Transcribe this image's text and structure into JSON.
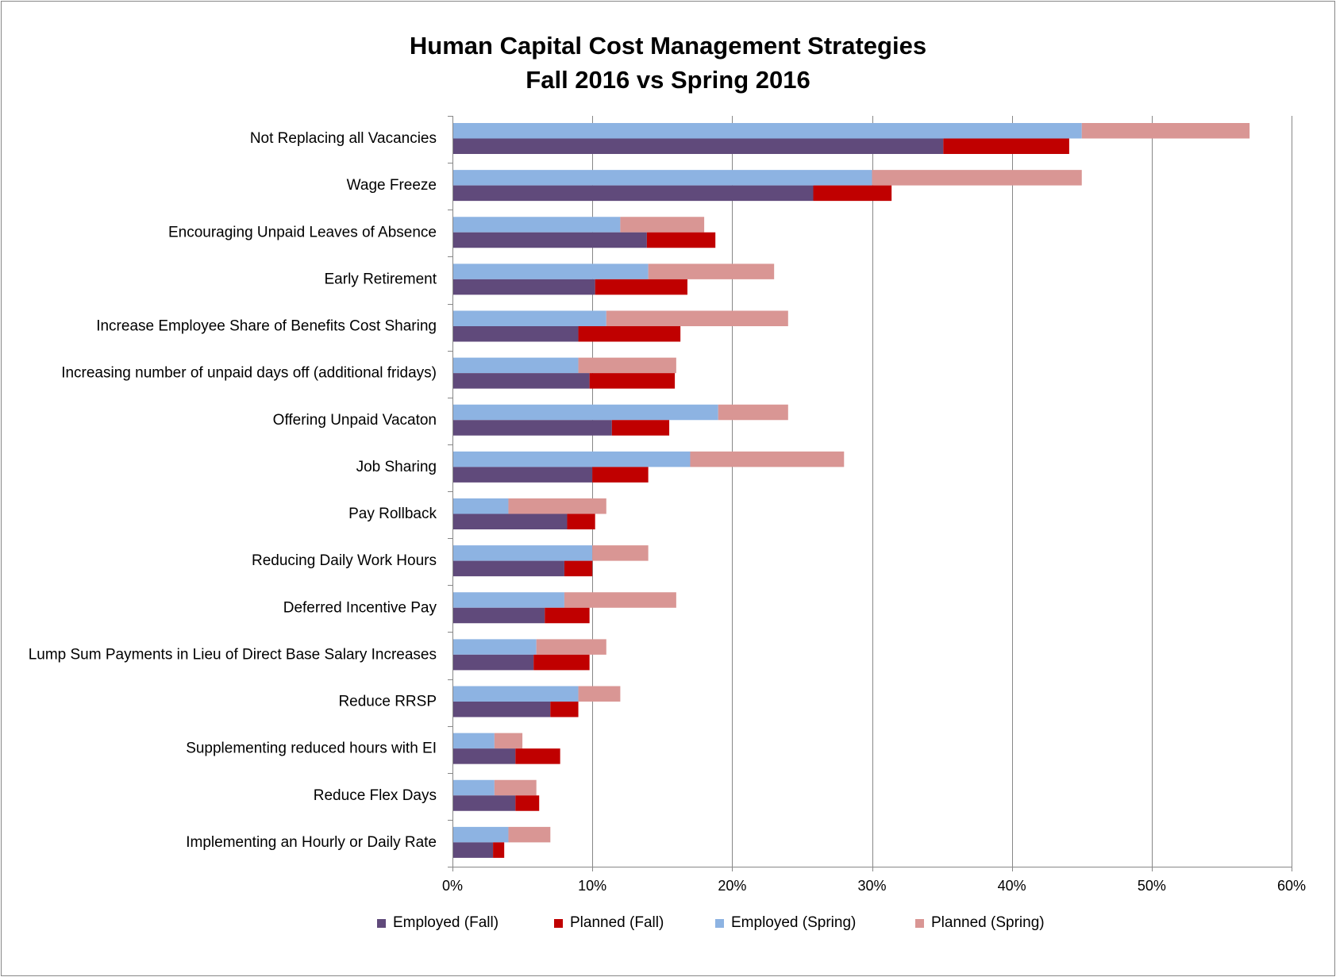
{
  "chart_data": {
    "type": "bar",
    "orientation": "horizontal",
    "stacked": true,
    "title_lines": [
      "Human Capital Cost Management Strategies",
      "Fall 2016 vs Spring 2016"
    ],
    "xlabel": "",
    "ylabel": "",
    "xlim": [
      0,
      0.6
    ],
    "x_ticks": [
      0,
      0.1,
      0.2,
      0.3,
      0.4,
      0.5,
      0.6
    ],
    "x_tick_labels": [
      "0%",
      "10%",
      "20%",
      "30%",
      "40%",
      "50%",
      "60%"
    ],
    "grid": "vertical",
    "legend_position": "bottom",
    "categories": [
      "Not Replacing all Vacancies",
      "Wage Freeze",
      "Encouraging Unpaid Leaves of Absence",
      "Early Retirement",
      "Increase Employee Share of Benefits Cost Sharing",
      "Increasing number of unpaid days off (additional fridays)",
      "Offering Unpaid Vacaton",
      "Job Sharing",
      "Pay Rollback",
      "Reducing Daily Work Hours",
      "Deferred Incentive Pay",
      "Lump Sum Payments in Lieu of Direct Base Salary Increases",
      "Reduce RRSP",
      "Supplementing reduced hours with EI",
      "Reduce Flex Days",
      "Implementing an Hourly or Daily Rate"
    ],
    "stack_groups": [
      {
        "group": "Spring",
        "series": [
          {
            "name": "Employed (Spring)",
            "color": "#8DB3E2",
            "values": [
              0.45,
              0.3,
              0.12,
              0.14,
              0.11,
              0.09,
              0.19,
              0.17,
              0.04,
              0.1,
              0.08,
              0.06,
              0.09,
              0.03,
              0.03,
              0.04
            ]
          },
          {
            "name": "Planned (Spring)",
            "color": "#D99694",
            "values": [
              0.12,
              0.15,
              0.06,
              0.09,
              0.13,
              0.07,
              0.05,
              0.11,
              0.07,
              0.04,
              0.08,
              0.05,
              0.03,
              0.02,
              0.03,
              0.03
            ]
          }
        ]
      },
      {
        "group": "Fall",
        "series": [
          {
            "name": "Employed (Fall)",
            "color": "#604A7B",
            "values": [
              0.351,
              0.258,
              0.139,
              0.102,
              0.09,
              0.098,
              0.114,
              0.1,
              0.082,
              0.08,
              0.066,
              0.058,
              0.07,
              0.045,
              0.045,
              0.029
            ]
          },
          {
            "name": "Planned (Fall)",
            "color": "#C00000",
            "values": [
              0.09,
              0.056,
              0.049,
              0.066,
              0.073,
              0.061,
              0.041,
              0.04,
              0.02,
              0.02,
              0.032,
              0.04,
              0.02,
              0.032,
              0.017,
              0.008
            ]
          }
        ]
      }
    ],
    "legend_order": [
      "Employed (Fall)",
      "Planned (Fall)",
      "Employed (Spring)",
      "Planned (Spring)"
    ],
    "colors": {
      "gridline": "#878787",
      "axis": "#878787",
      "border": "#878787",
      "text": "#000000"
    }
  }
}
